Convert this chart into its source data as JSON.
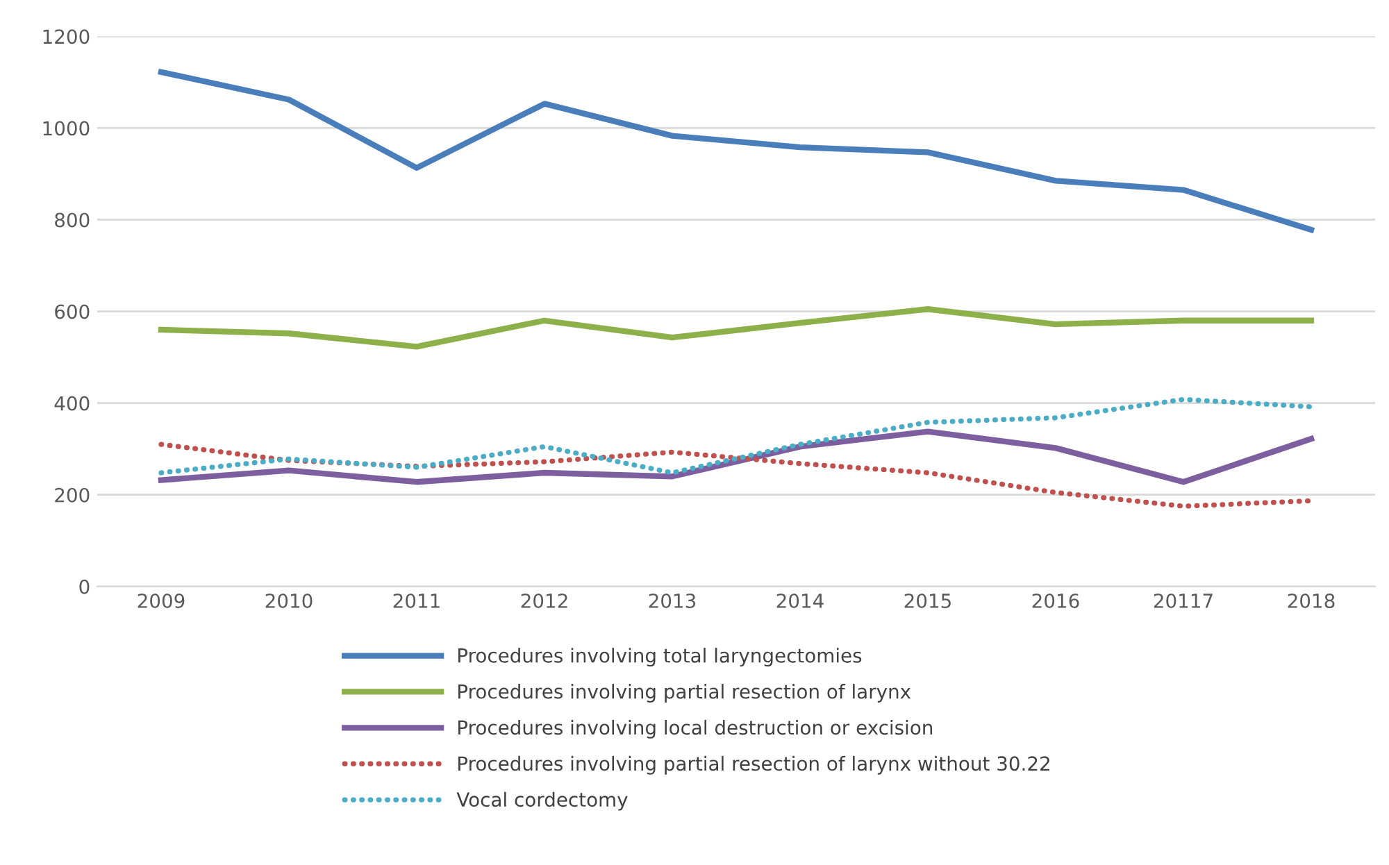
{
  "chart_data": {
    "type": "line",
    "categories": [
      "2009",
      "2010",
      "2011",
      "2012",
      "2013",
      "2014",
      "2015",
      "2016",
      "20117",
      "2018"
    ],
    "ylim": [
      0,
      1200
    ],
    "yticks": [
      0,
      200,
      400,
      600,
      800,
      1000,
      1200
    ],
    "grid": "y",
    "legend": "bottom",
    "marker": "none",
    "series": [
      {
        "name": "Procedures involving total laryngectomies",
        "color": "#4a7ebb",
        "line_style": "solid",
        "values": [
          1122,
          1062,
          913,
          1053,
          983,
          958,
          947,
          885,
          865,
          778
        ]
      },
      {
        "name": "Procedures involving partial resection of larynx",
        "color": "#8db04a",
        "line_style": "solid",
        "values": [
          560,
          552,
          523,
          580,
          543,
          575,
          605,
          572,
          580,
          580
        ]
      },
      {
        "name": "Procedures involving local destruction or excision",
        "color": "#7d5fa0",
        "line_style": "solid",
        "values": [
          232,
          253,
          228,
          248,
          240,
          305,
          338,
          302,
          228,
          322
        ]
      },
      {
        "name": "Procedures involving partial resection of larynx without 30.22",
        "color": "#c0504d",
        "line_style": "dotted",
        "values": [
          310,
          275,
          262,
          272,
          293,
          268,
          248,
          205,
          175,
          187
        ]
      },
      {
        "name": "Vocal cordectomy",
        "color": "#4bacc6",
        "line_style": "dotted",
        "values": [
          248,
          278,
          260,
          305,
          248,
          310,
          358,
          368,
          408,
          392
        ]
      }
    ]
  }
}
